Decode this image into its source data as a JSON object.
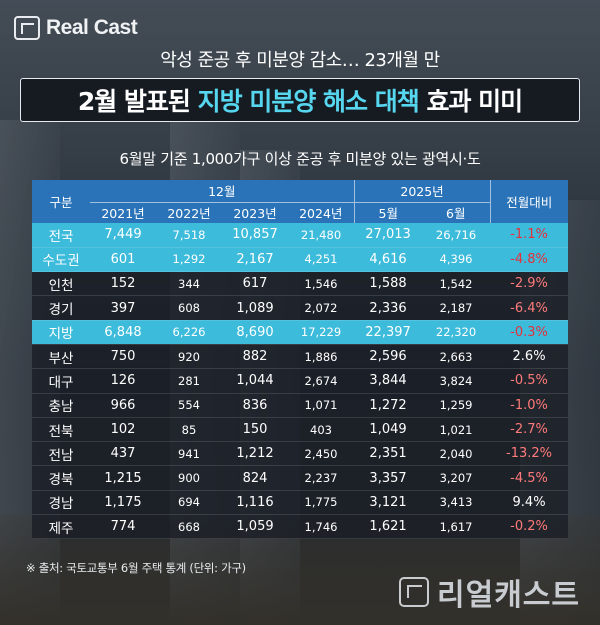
{
  "logo": {
    "text": "Real Cast",
    "icon": "realcast-logo-icon"
  },
  "subtitle": "악성 준공 후 미분양 감소… 23개월 만",
  "title": {
    "prefix": "2월 발표된 ",
    "highlight": "지방 미분양 해소 대책",
    "suffix": " 효과 미미"
  },
  "caption": "6월말 기준 1,000가구 이상 준공 후 미분양 있는 광역시·도",
  "table": {
    "header_label": "구분",
    "group_12": "12월",
    "group_2025": "2025년",
    "change_label": "전월대비",
    "years": [
      "2021년",
      "2022년",
      "2023년",
      "2024년"
    ],
    "months": [
      "5월",
      "6월"
    ],
    "rows": [
      {
        "name": "전국",
        "v": [
          "7,449",
          "7,518",
          "10,857",
          "21,480",
          "27,013",
          "26,716"
        ],
        "chg": "-1.1%",
        "hl": true
      },
      {
        "name": "수도권",
        "v": [
          "601",
          "1,292",
          "2,167",
          "4,251",
          "4,616",
          "4,396"
        ],
        "chg": "-4.8%",
        "hl": true
      },
      {
        "name": "인천",
        "v": [
          "152",
          "344",
          "617",
          "1,546",
          "1,588",
          "1,542"
        ],
        "chg": "-2.9%",
        "hl": false
      },
      {
        "name": "경기",
        "v": [
          "397",
          "608",
          "1,089",
          "2,072",
          "2,336",
          "2,187"
        ],
        "chg": "-6.4%",
        "hl": false
      },
      {
        "name": "지방",
        "v": [
          "6,848",
          "6,226",
          "8,690",
          "17,229",
          "22,397",
          "22,320"
        ],
        "chg": "-0.3%",
        "hl": true
      },
      {
        "name": "부산",
        "v": [
          "750",
          "920",
          "882",
          "1,886",
          "2,596",
          "2,663"
        ],
        "chg": "2.6%",
        "hl": false
      },
      {
        "name": "대구",
        "v": [
          "126",
          "281",
          "1,044",
          "2,674",
          "3,844",
          "3,824"
        ],
        "chg": "-0.5%",
        "hl": false
      },
      {
        "name": "충남",
        "v": [
          "966",
          "554",
          "836",
          "1,071",
          "1,272",
          "1,259"
        ],
        "chg": "-1.0%",
        "hl": false
      },
      {
        "name": "전북",
        "v": [
          "102",
          "85",
          "150",
          "403",
          "1,049",
          "1,021"
        ],
        "chg": "-2.7%",
        "hl": false
      },
      {
        "name": "전남",
        "v": [
          "437",
          "941",
          "1,212",
          "2,450",
          "2,351",
          "2,040"
        ],
        "chg": "-13.2%",
        "hl": false
      },
      {
        "name": "경북",
        "v": [
          "1,215",
          "900",
          "824",
          "2,237",
          "3,357",
          "3,207"
        ],
        "chg": "-4.5%",
        "hl": false
      },
      {
        "name": "경남",
        "v": [
          "1,175",
          "694",
          "1,116",
          "1,775",
          "3,121",
          "3,413"
        ],
        "chg": "9.4%",
        "hl": false
      },
      {
        "name": "제주",
        "v": [
          "774",
          "668",
          "1,059",
          "1,746",
          "1,621",
          "1,617"
        ],
        "chg": "-0.2%",
        "hl": false
      }
    ]
  },
  "source": "※ 출처: 국토교통부 6월 주택 통계 (단위: 가구)",
  "brand_kr": {
    "text": "리얼캐스트",
    "icon": "realcast-brand-icon"
  },
  "colors": {
    "header": "#2a73b8",
    "highlight_row": "#3dbbdb",
    "title_highlight": "#57d7ef",
    "negative": "#ff7a7a"
  }
}
